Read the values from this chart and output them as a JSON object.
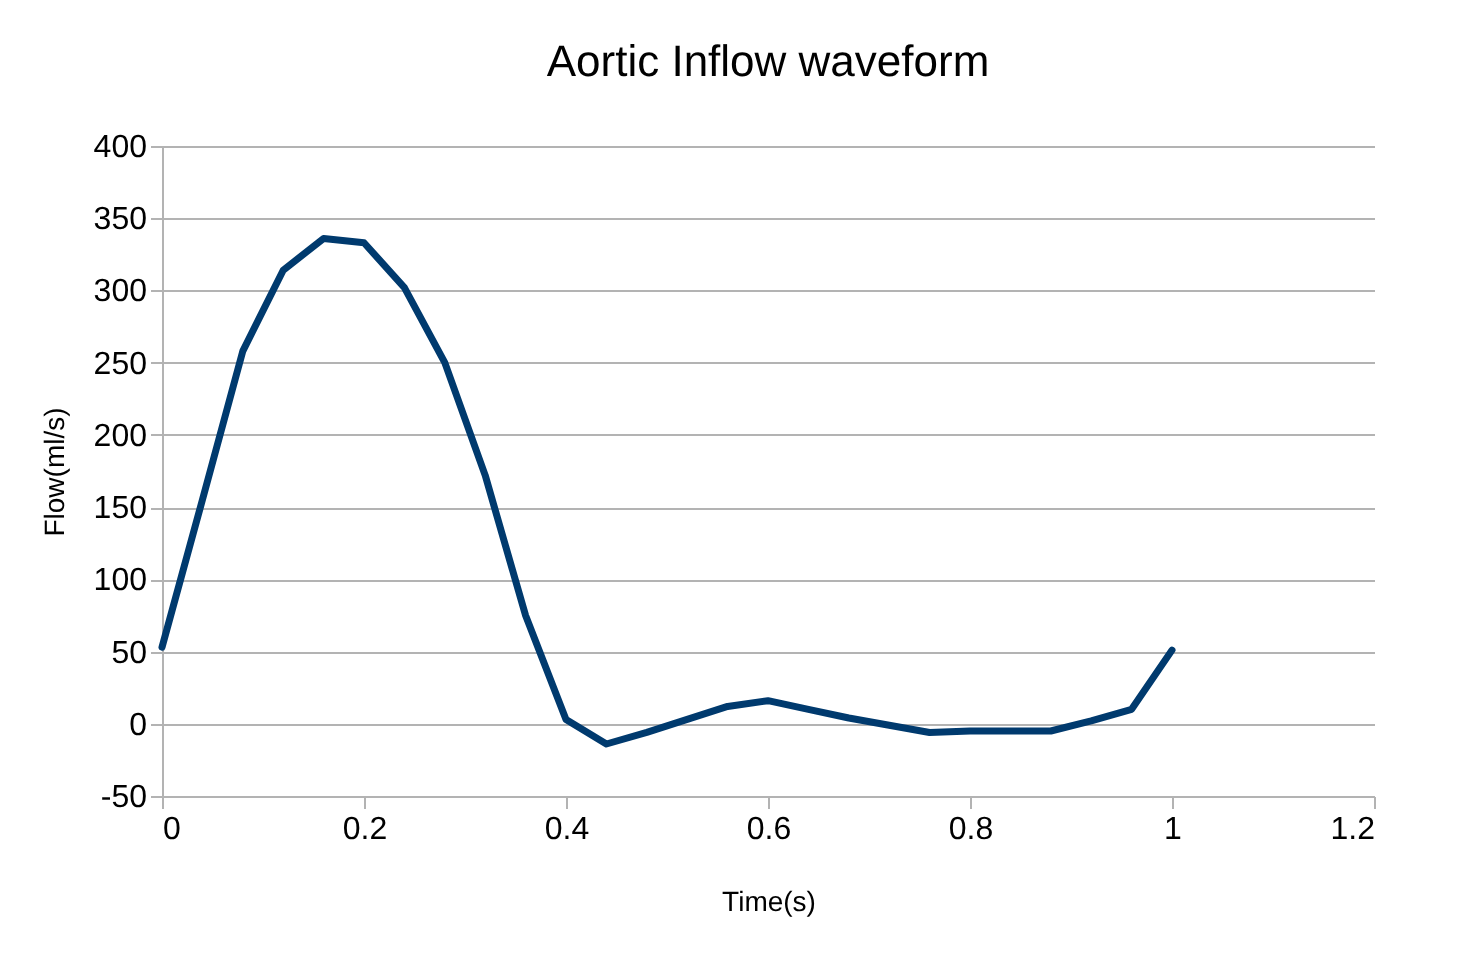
{
  "chart_data": {
    "type": "line",
    "title": "Aortic Inflow waveform",
    "xlabel": "Time(s)",
    "ylabel": "Flow(ml/s)",
    "x": [
      0,
      0.04,
      0.08,
      0.12,
      0.16,
      0.2,
      0.24,
      0.28,
      0.32,
      0.36,
      0.4,
      0.44,
      0.48,
      0.52,
      0.56,
      0.6,
      0.64,
      0.68,
      0.72,
      0.76,
      0.8,
      0.84,
      0.88,
      0.92,
      0.96,
      1.0
    ],
    "series": [
      {
        "color": "#003a6e",
        "values": [
          53,
          155,
          258,
          314,
          336,
          333,
          302,
          250,
          172,
          75,
          3,
          -14,
          -6,
          3,
          12,
          16,
          10,
          4,
          -1,
          -6,
          -5,
          -5,
          -5,
          2,
          10,
          51
        ]
      }
    ],
    "xlim": [
      0,
      1.2
    ],
    "xticks": [
      0,
      0.2,
      0.4,
      0.6,
      0.8,
      1,
      1.2
    ],
    "ylim": [
      -50,
      400
    ],
    "yticks": [
      -50,
      0,
      50,
      100,
      150,
      200,
      250,
      300,
      350,
      400
    ],
    "grid": "y",
    "marker": "none",
    "line_style": "solid"
  }
}
